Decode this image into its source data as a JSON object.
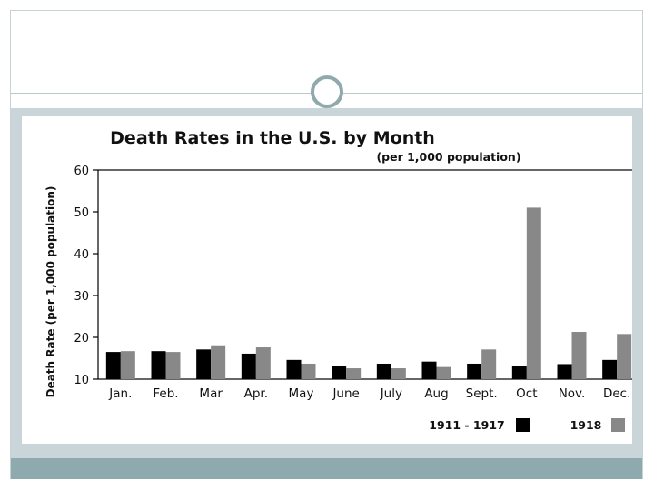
{
  "colors": {
    "series_1911_1917": "#000000",
    "series_1918": "#888888",
    "band": "#c9d5d8",
    "footer": "#8eaaae"
  },
  "chart_data": {
    "type": "bar",
    "title": "Death Rates in the U.S. by Month",
    "subtitle": "(per 1,000 population)",
    "xlabel": "",
    "ylabel": "Death Rate (per 1,000 population)",
    "ylim": [
      10,
      60
    ],
    "yticks": [
      "10",
      "20",
      "30",
      "40",
      "50",
      "60"
    ],
    "grid": false,
    "legend_position": "bottom-right",
    "categories": [
      "Jan.",
      "Feb.",
      "Mar",
      "Apr.",
      "May",
      "June",
      "July",
      "Aug",
      "Sept.",
      "Oct",
      "Nov.",
      "Dec."
    ],
    "series": [
      {
        "name": "1911 - 1917",
        "values": [
          16.5,
          16.7,
          17.1,
          16.1,
          14.6,
          13.1,
          13.7,
          14.2,
          13.7,
          13.1,
          13.6,
          14.6
        ]
      },
      {
        "name": "1918",
        "values": [
          16.7,
          16.5,
          18.1,
          17.6,
          13.7,
          12.6,
          12.6,
          12.9,
          17.1,
          51.0,
          21.3,
          20.8
        ]
      }
    ]
  }
}
